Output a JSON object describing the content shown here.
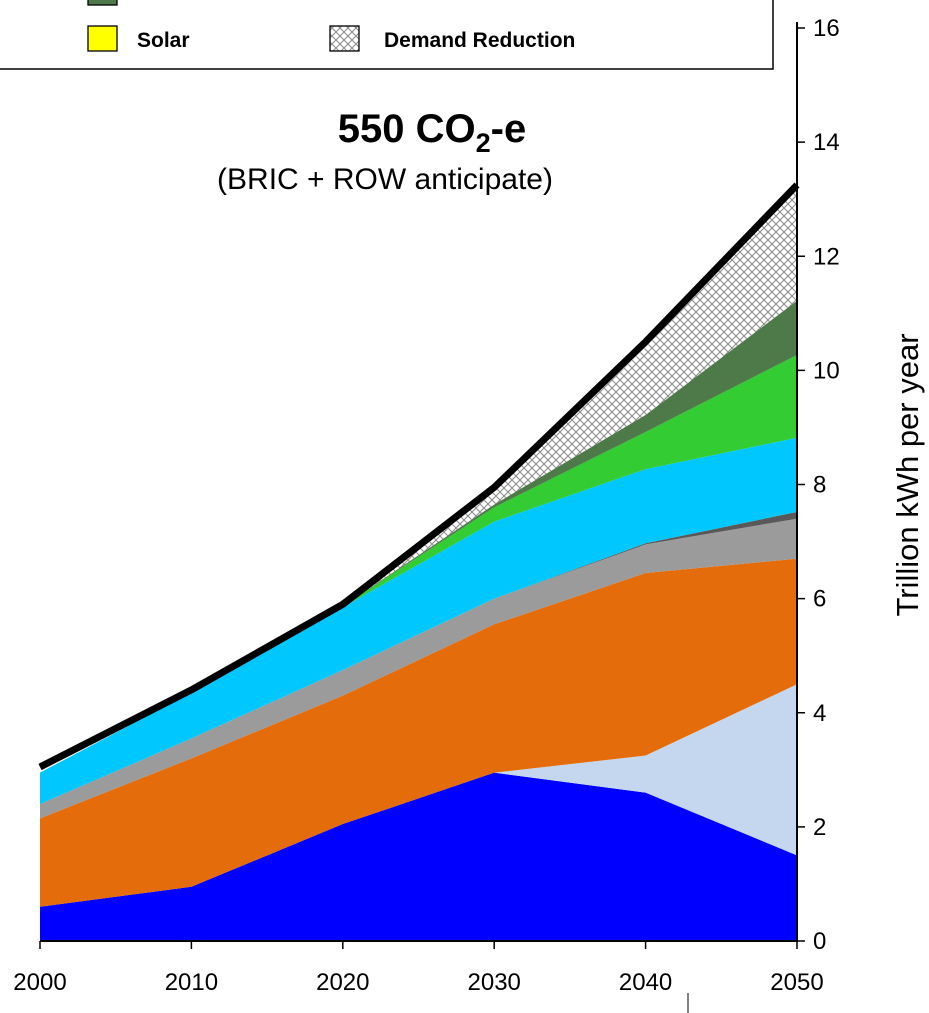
{
  "chart_data": {
    "type": "area",
    "title": "550 CO₂-e",
    "title_main": "550 CO",
    "title_sub_script": "2",
    "title_suffix": "-e",
    "subtitle": "(BRIC + ROW anticipate)",
    "ylabel": "Trillion kWh per year",
    "xlabel": "",
    "x": [
      2000,
      2010,
      2020,
      2030,
      2040,
      2050
    ],
    "xlim": [
      2000,
      2050
    ],
    "ylim": [
      0,
      16
    ],
    "x_ticks": [
      "2000",
      "2010",
      "2020",
      "2030",
      "2040",
      "2050"
    ],
    "y_ticks": [
      "0",
      "2",
      "4",
      "6",
      "8",
      "10",
      "12",
      "14",
      "16"
    ],
    "y_axis_side": "right",
    "grid": false,
    "stacked": true,
    "series": [
      {
        "values": [
          0.6,
          0.95,
          2.05,
          2.95,
          2.6,
          1.5
        ],
        "color": "#0000ff"
      },
      {
        "values": [
          0,
          0,
          0,
          0,
          0.65,
          3.0
        ],
        "color": "#c5d7ee"
      },
      {
        "values": [
          1.55,
          2.25,
          2.25,
          2.6,
          3.2,
          2.2
        ],
        "color": "#e46c0a"
      },
      {
        "values": [
          0.25,
          0.35,
          0.45,
          0.45,
          0.5,
          0.7
        ],
        "color": "#9b9b9b"
      },
      {
        "values": [
          0,
          0,
          0,
          0,
          0.02,
          0.12
        ],
        "color": "#595959"
      },
      {
        "values": [
          0.55,
          0.8,
          1.1,
          1.35,
          1.3,
          1.3
        ],
        "color": "#00c8ff"
      },
      {
        "values": [
          0,
          0,
          0.02,
          0.25,
          0.65,
          1.45
        ],
        "color": "#33cc33"
      },
      {
        "values": [
          0,
          0,
          0,
          0.05,
          0.3,
          0.95
        ],
        "color": "#4e7a4a"
      },
      {
        "values": [
          0,
          0,
          0,
          0,
          0,
          0
        ],
        "color": "#ffff00"
      },
      {
        "values": [
          0,
          0,
          0,
          0.25,
          1.18,
          2.03
        ],
        "color": "#ffffff",
        "pattern": "crosshatch"
      }
    ],
    "total_line": {
      "values": [
        3.05,
        4.4,
        5.9,
        7.95,
        10.5,
        13.25
      ],
      "color": "#000000"
    },
    "legend": {
      "placement": "top-left",
      "items": [
        {
          "label": "",
          "color": "#4e7a4a"
        },
        {
          "label": "Solar",
          "color": "#ffff00"
        },
        {
          "label": "Demand Reduction",
          "color": "#ffffff",
          "pattern": "crosshatch"
        }
      ]
    }
  }
}
